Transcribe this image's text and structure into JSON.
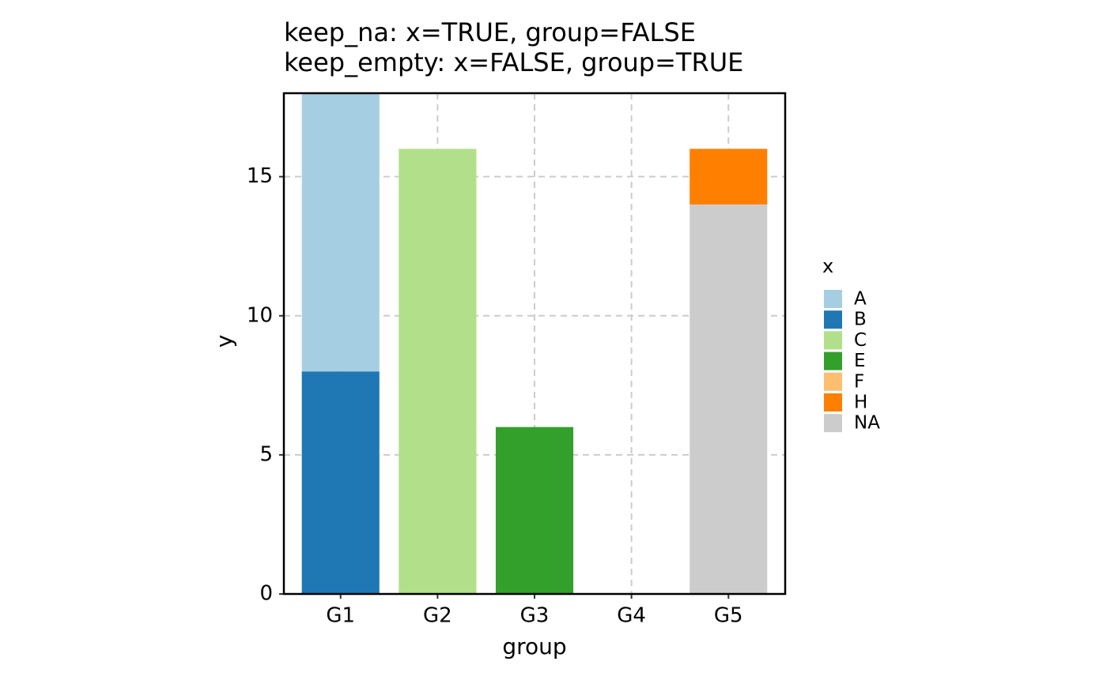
{
  "chart_data": {
    "type": "bar",
    "stacked": true,
    "title": [
      "keep_na: x=TRUE, group=FALSE",
      "keep_empty: x=FALSE, group=TRUE"
    ],
    "x_label": "group",
    "y_label": "y",
    "categories": [
      "G1",
      "G2",
      "G3",
      "G4",
      "G5"
    ],
    "legend_title": "x",
    "legend_position": "right",
    "series": [
      {
        "name": "A",
        "color": "#a6cee3",
        "values": [
          10,
          null,
          null,
          null,
          null
        ]
      },
      {
        "name": "B",
        "color": "#1f78b4",
        "values": [
          8,
          null,
          null,
          null,
          null
        ]
      },
      {
        "name": "C",
        "color": "#b2df8a",
        "values": [
          null,
          16,
          null,
          null,
          null
        ]
      },
      {
        "name": "E",
        "color": "#33a02c",
        "values": [
          null,
          null,
          6,
          null,
          null
        ]
      },
      {
        "name": "F",
        "color": "#fdbf6f",
        "values": [
          null,
          null,
          null,
          null,
          null
        ]
      },
      {
        "name": "H",
        "color": "#ff7f00",
        "values": [
          null,
          null,
          null,
          null,
          2
        ]
      },
      {
        "name": "NA",
        "color": "#cccccc",
        "values": [
          null,
          null,
          null,
          null,
          14
        ]
      }
    ],
    "ylim": [
      0,
      18
    ],
    "yticks": [
      0,
      5,
      10,
      15
    ],
    "grid": true
  }
}
